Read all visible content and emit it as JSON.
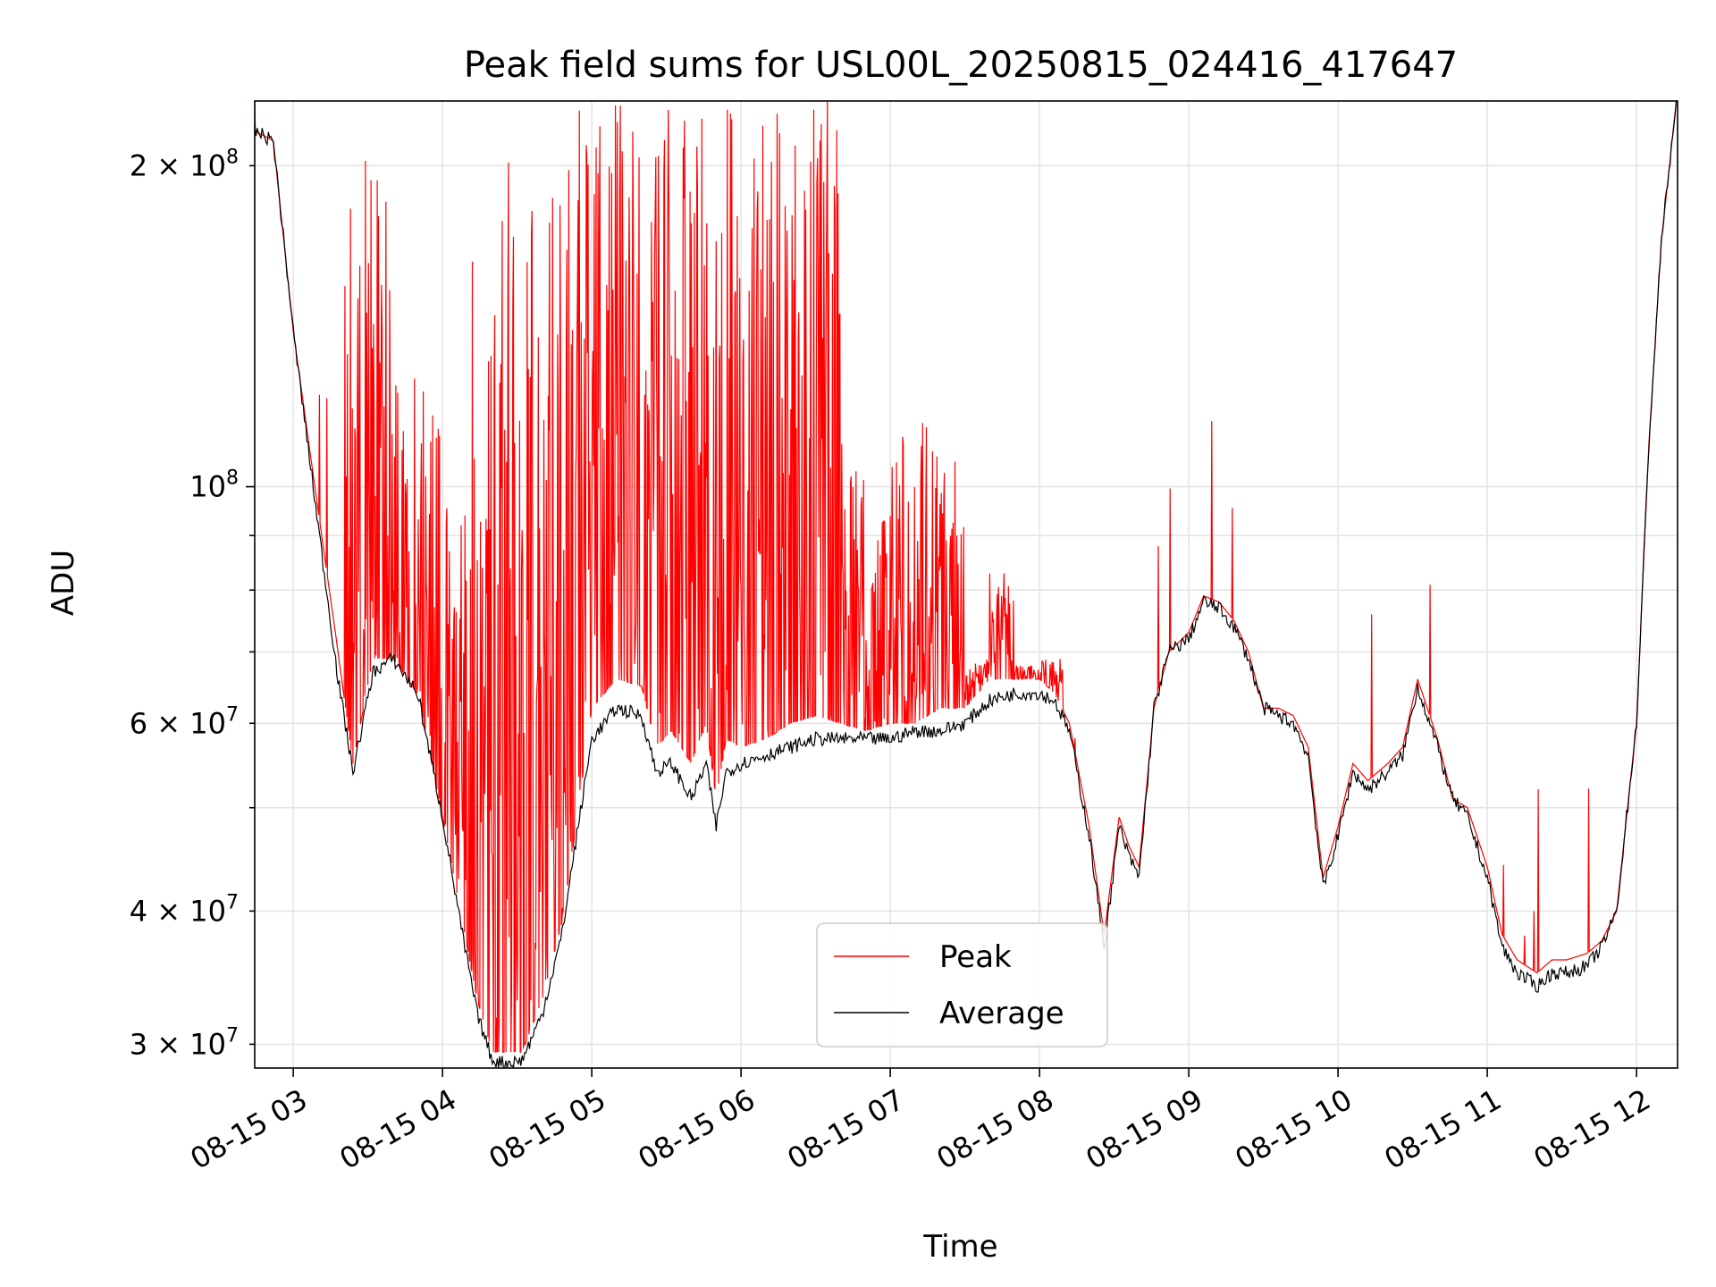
{
  "chart_data": {
    "type": "line",
    "title": "Peak field sums for USL00L_20250815_024416_417647",
    "xlabel": "Time",
    "ylabel": "ADU",
    "yscale": "log",
    "ylim": [
      28500000,
      230000000
    ],
    "xlim": [
      "2025-08-15 02:44:30",
      "2025-08-15 12:16:30"
    ],
    "grid": true,
    "legend_position": "lower-center",
    "x_ticks": [
      {
        "value": "2025-08-15 03:00",
        "label": "08-15 03"
      },
      {
        "value": "2025-08-15 04:00",
        "label": "08-15 04"
      },
      {
        "value": "2025-08-15 05:00",
        "label": "08-15 05"
      },
      {
        "value": "2025-08-15 06:00",
        "label": "08-15 06"
      },
      {
        "value": "2025-08-15 07:00",
        "label": "08-15 07"
      },
      {
        "value": "2025-08-15 08:00",
        "label": "08-15 08"
      },
      {
        "value": "2025-08-15 09:00",
        "label": "08-15 09"
      },
      {
        "value": "2025-08-15 10:00",
        "label": "08-15 10"
      },
      {
        "value": "2025-08-15 11:00",
        "label": "08-15 11"
      },
      {
        "value": "2025-08-15 12:00",
        "label": "08-15 12"
      }
    ],
    "y_ticks_major": [
      {
        "value": 100000000,
        "mantissa": "",
        "base": "10",
        "exp": "8"
      }
    ],
    "y_ticks_minor_labeled": [
      {
        "value": 30000000,
        "mantissa": "3",
        "base": "10",
        "exp": "7"
      },
      {
        "value": 40000000,
        "mantissa": "4",
        "base": "10",
        "exp": "7"
      },
      {
        "value": 60000000,
        "mantissa": "6",
        "base": "10",
        "exp": "7"
      },
      {
        "value": 200000000,
        "mantissa": "2",
        "base": "10",
        "exp": "8"
      }
    ],
    "y_ticks_minor": [
      50000000,
      70000000,
      80000000,
      90000000
    ],
    "series": [
      {
        "name": "Peak",
        "color": "#ff0000",
        "x": [
          "02:44",
          "02:52",
          "03:00",
          "03:10",
          "03:18",
          "03:24",
          "03:32",
          "03:40",
          "03:50",
          "04:00",
          "04:08",
          "04:14",
          "04:20",
          "04:26",
          "04:32",
          "04:40",
          "04:48",
          "04:52",
          "05:00",
          "05:10",
          "05:20",
          "05:26",
          "05:32",
          "05:40",
          "05:46",
          "05:50",
          "05:54",
          "06:00",
          "06:10",
          "06:20",
          "06:30",
          "06:40",
          "06:50",
          "07:00",
          "07:10",
          "07:20",
          "07:30",
          "07:40",
          "07:50",
          "08:00",
          "08:06",
          "08:12",
          "08:20",
          "08:26",
          "08:32",
          "08:36",
          "08:40",
          "08:46",
          "08:52",
          "09:00",
          "09:06",
          "09:12",
          "09:18",
          "09:24",
          "09:30",
          "09:36",
          "09:42",
          "09:48",
          "09:54",
          "10:00",
          "10:06",
          "10:12",
          "10:20",
          "10:26",
          "10:32",
          "10:40",
          "10:46",
          "10:52",
          "11:00",
          "11:06",
          "11:12",
          "11:20",
          "11:26",
          "11:32",
          "11:40",
          "11:46",
          "11:52",
          "12:00",
          "12:05",
          "12:10",
          "12:16"
        ],
        "values": [
          216000000,
          211000000,
          140000000,
          95000000,
          70000000,
          55000000,
          69000000,
          69000000,
          64000000,
          49000000,
          39000000,
          33000000,
          29500000,
          29500000,
          29500000,
          33000000,
          39000000,
          45000000,
          62000000,
          66000000,
          65000000,
          57000000,
          59000000,
          55000000,
          60000000,
          51000000,
          58000000,
          57000000,
          58000000,
          60000000,
          61000000,
          60000000,
          59000000,
          60000000,
          60000000,
          62000000,
          62000000,
          66000000,
          66000000,
          66000000,
          64000000,
          60000000,
          48000000,
          38000000,
          49000000,
          46000000,
          44000000,
          62000000,
          70000000,
          73000000,
          79000000,
          78000000,
          75000000,
          70000000,
          62000000,
          62000000,
          61000000,
          57000000,
          43000000,
          48000000,
          55000000,
          53000000,
          55000000,
          57000000,
          66000000,
          58000000,
          51000000,
          50000000,
          44000000,
          38000000,
          36000000,
          35000000,
          36000000,
          36000000,
          36500000,
          37500000,
          40000000,
          60000000,
          110000000,
          170000000,
          230000000
        ],
        "spikes": {
          "note": "dense oscillating spikes between 03:20 and 08:10",
          "max_values": [
            216000000,
            211000000,
            131000000,
            126000000,
            108000000,
            176000000,
            203000000,
            198000000,
            196000000,
            232000000,
            232000000,
            232000000,
            232000000,
            232000000,
            232000000,
            232000000,
            232000000,
            232000000,
            232000000,
            232000000,
            112000000,
            97000000,
            113000000,
            118000000,
            106000000,
            69000000,
            83000000,
            68000000,
            69000000
          ]
        }
      },
      {
        "name": "Average",
        "color": "#000000",
        "x": [
          "02:44",
          "02:52",
          "03:00",
          "03:10",
          "03:18",
          "03:24",
          "03:32",
          "03:40",
          "03:50",
          "04:00",
          "04:08",
          "04:14",
          "04:20",
          "04:26",
          "04:32",
          "04:40",
          "04:48",
          "04:52",
          "05:00",
          "05:10",
          "05:20",
          "05:26",
          "05:32",
          "05:40",
          "05:46",
          "05:50",
          "05:54",
          "06:00",
          "06:10",
          "06:20",
          "06:30",
          "06:40",
          "06:50",
          "07:00",
          "07:10",
          "07:20",
          "07:30",
          "07:40",
          "07:50",
          "08:00",
          "08:06",
          "08:12",
          "08:20",
          "08:26",
          "08:32",
          "08:36",
          "08:40",
          "08:46",
          "08:52",
          "09:00",
          "09:06",
          "09:12",
          "09:18",
          "09:24",
          "09:30",
          "09:36",
          "09:42",
          "09:48",
          "09:54",
          "10:00",
          "10:06",
          "10:12",
          "10:20",
          "10:26",
          "10:32",
          "10:40",
          "10:46",
          "10:52",
          "11:00",
          "11:06",
          "11:12",
          "11:20",
          "11:26",
          "11:32",
          "11:40",
          "11:46",
          "11:52",
          "12:00",
          "12:05",
          "12:10",
          "12:16"
        ],
        "values": [
          216000000,
          211000000,
          140000000,
          92000000,
          66000000,
          54000000,
          67000000,
          69000000,
          64000000,
          49000000,
          38000000,
          32000000,
          29000000,
          28800000,
          29000000,
          32000000,
          38000000,
          44000000,
          58000000,
          62000000,
          61000000,
          54000000,
          55000000,
          51000000,
          55000000,
          48000000,
          54000000,
          55000000,
          56000000,
          57000000,
          58000000,
          58000000,
          58000000,
          58000000,
          59000000,
          59000000,
          60000000,
          63000000,
          64000000,
          64000000,
          63000000,
          59000000,
          47000000,
          37000000,
          48000000,
          45000000,
          43000000,
          62000000,
          70000000,
          72000000,
          78000000,
          77000000,
          74000000,
          69000000,
          62000000,
          61000000,
          60000000,
          56000000,
          42000000,
          47000000,
          54000000,
          52000000,
          54000000,
          56000000,
          65000000,
          57000000,
          51000000,
          49000000,
          43000000,
          37000000,
          35000000,
          34000000,
          35000000,
          35000000,
          35500000,
          37000000,
          40000000,
          60000000,
          110000000,
          170000000,
          230000000
        ]
      }
    ]
  }
}
